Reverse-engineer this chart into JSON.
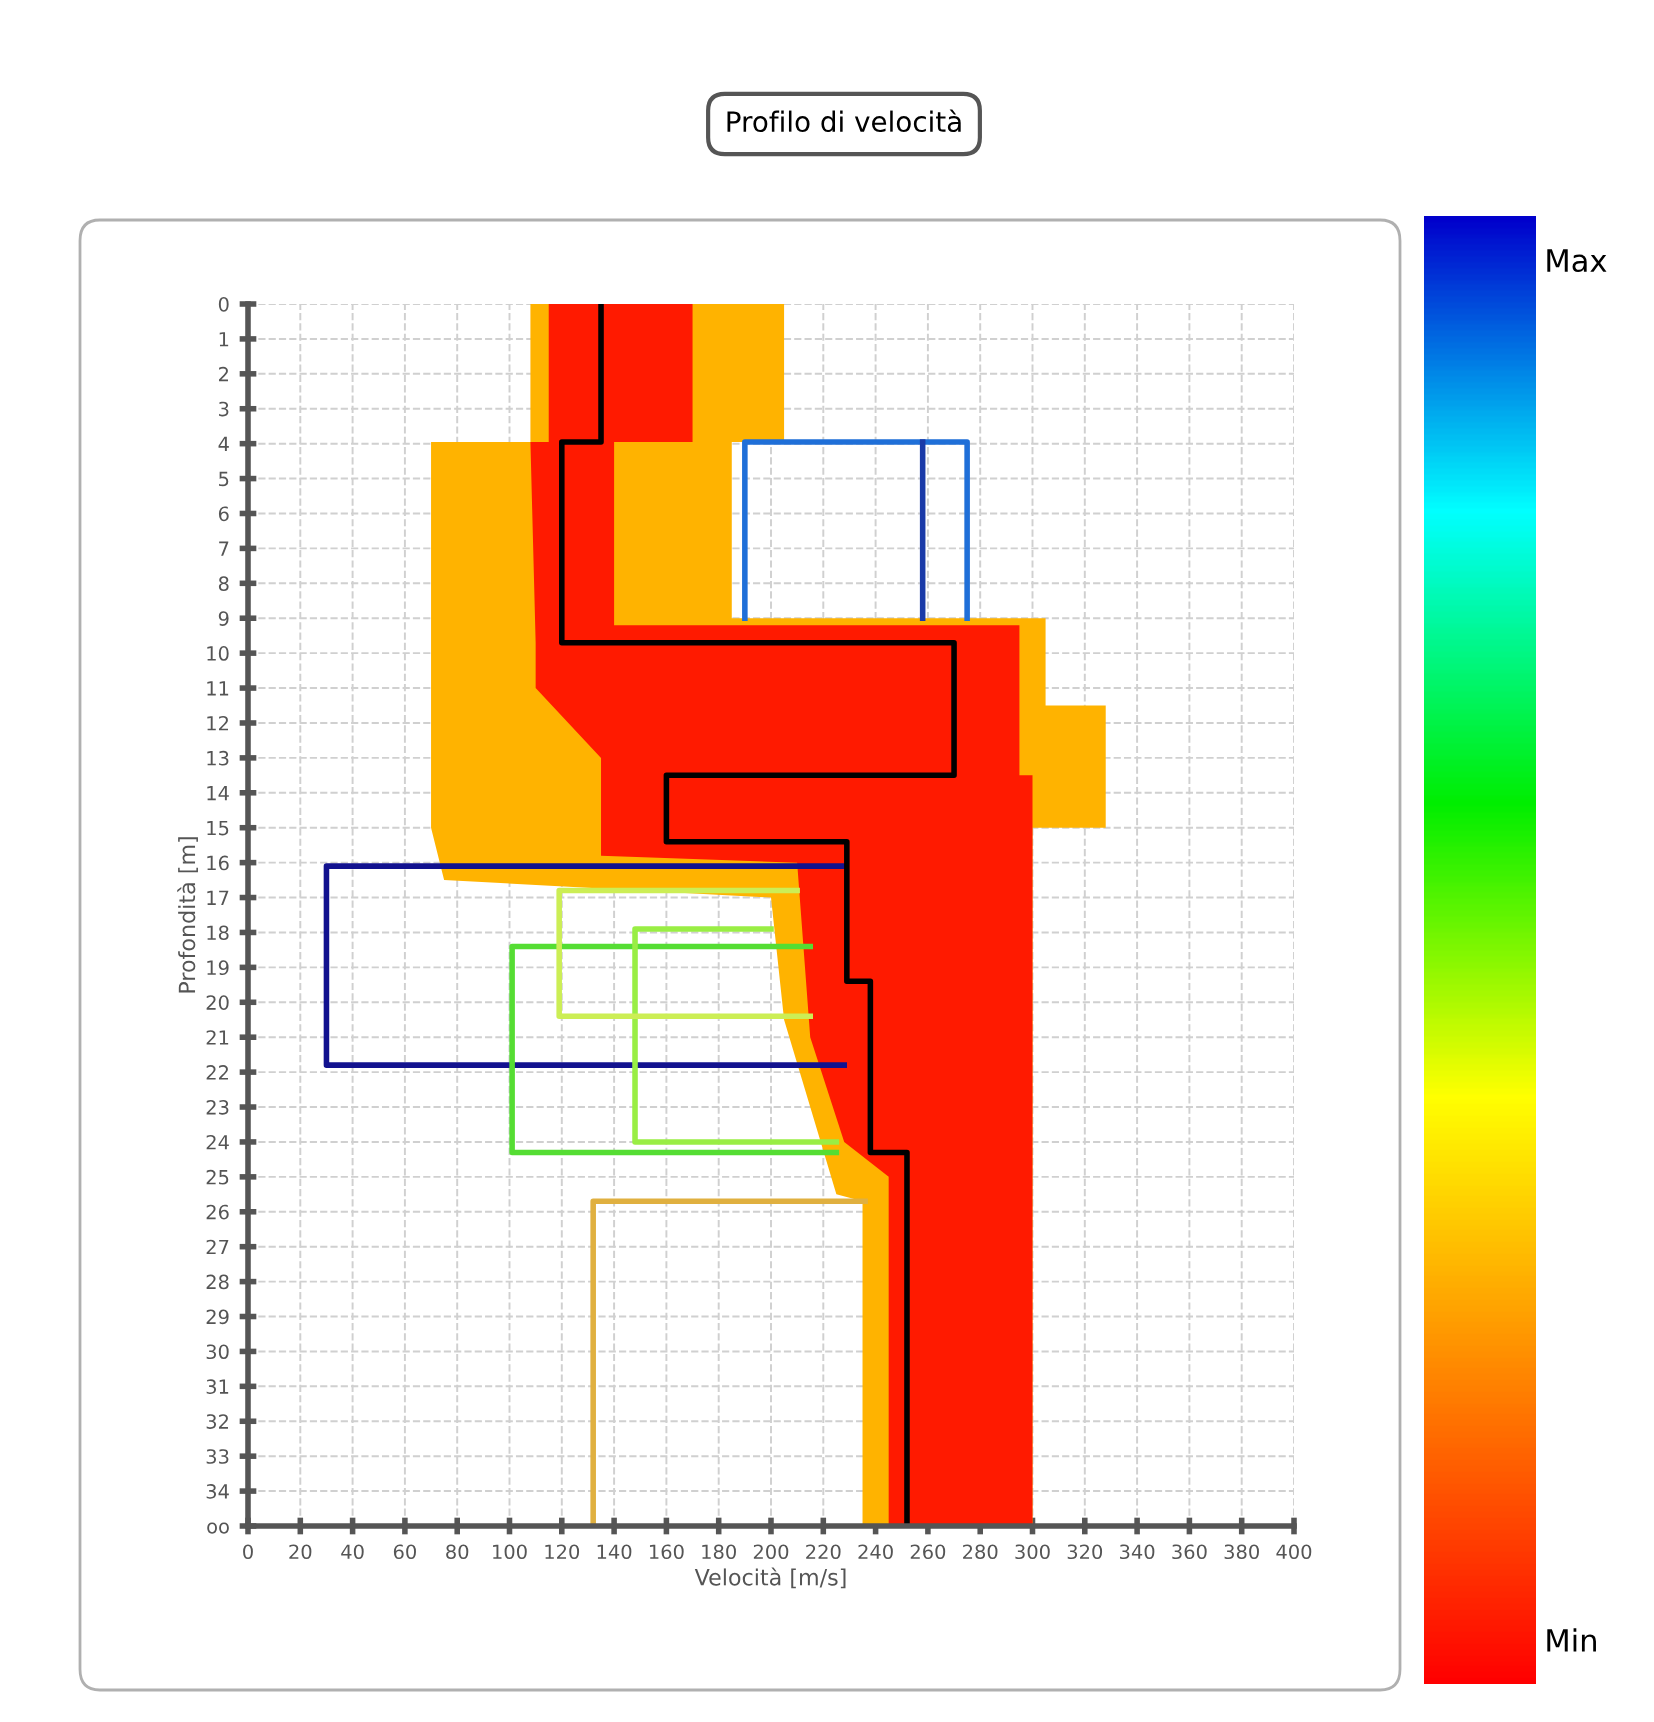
{
  "chart_data": {
    "type": "line",
    "title": "Profilo di velocità",
    "xlabel": "Velocità [m/s]",
    "ylabel": "Profondità [m]",
    "xlim": [
      0,
      400
    ],
    "xticks": [
      0,
      20,
      40,
      60,
      80,
      100,
      120,
      140,
      160,
      180,
      200,
      220,
      240,
      260,
      280,
      300,
      320,
      340,
      360,
      380,
      400
    ],
    "ylim": [
      35,
      0
    ],
    "yticks": [
      0,
      1,
      2,
      3,
      4,
      5,
      6,
      7,
      8,
      9,
      10,
      11,
      12,
      13,
      14,
      15,
      16,
      17,
      18,
      19,
      20,
      21,
      22,
      23,
      24,
      25,
      26,
      27,
      28,
      29,
      30,
      31,
      32,
      33,
      34,
      {
        "value": 35,
        "label": "oo"
      }
    ],
    "grid": true,
    "line_style": "solid",
    "marker": "none",
    "clim": [
      0,
      1
    ],
    "cticks": [
      {
        "value": 0.97,
        "label": "Max"
      },
      {
        "value": 0.03,
        "label": "Min"
      }
    ],
    "series": [
      {
        "type": "area",
        "color": "#ffb300",
        "x": [
          108,
          205,
          205,
          185,
          185,
          305,
          305,
          328,
          328,
          300,
          300,
          235,
          235,
          225,
          205,
          200,
          75,
          70,
          70,
          108
        ],
        "values": [
          0,
          0,
          3.95,
          3.95,
          9,
          9,
          11.5,
          11.5,
          15,
          15,
          35,
          35,
          25.7,
          25.5,
          20.5,
          17,
          16.5,
          15,
          3.95,
          3.95
        ]
      },
      {
        "type": "area",
        "color": "#ff1a00",
        "x": [
          115,
          170,
          170,
          140,
          140,
          295,
          295,
          300,
          300,
          245,
          245,
          228,
          215,
          210,
          135,
          135,
          110,
          110,
          108,
          115
        ],
        "values": [
          0,
          0,
          3.95,
          3.95,
          9.2,
          9.2,
          13.5,
          13.5,
          35,
          35,
          25,
          24,
          21,
          16,
          15.8,
          13,
          11,
          9.7,
          3.95,
          3.95
        ]
      },
      {
        "color": "#1f6fd8",
        "x": [
          190,
          190,
          275,
          275
        ],
        "values": [
          9,
          3.95,
          3.95,
          9
        ]
      },
      {
        "color": "#1a3aa8",
        "x": [
          258,
          258
        ],
        "values": [
          3.95,
          9
        ]
      },
      {
        "color": "#12128f",
        "x": [
          228,
          30,
          30,
          228
        ],
        "values": [
          16.1,
          16.1,
          21.8,
          21.8
        ]
      },
      {
        "color": "#55dd33",
        "x": [
          215,
          101,
          101,
          225
        ],
        "values": [
          18.4,
          18.4,
          24.3,
          24.3
        ]
      },
      {
        "color": "#99ee44",
        "x": [
          200,
          148,
          148,
          225
        ],
        "values": [
          17.9,
          17.9,
          24.0,
          24.0
        ]
      },
      {
        "color": "#ccee55",
        "x": [
          210,
          119,
          119,
          215
        ],
        "values": [
          16.8,
          16.8,
          20.4,
          20.4
        ]
      },
      {
        "color": "#e0b040",
        "x": [
          236,
          132,
          132
        ],
        "values": [
          25.7,
          25.7,
          35
        ]
      },
      {
        "color": "#000000",
        "x": [
          135,
          135,
          120,
          120,
          270,
          270,
          160,
          160,
          229,
          229,
          238,
          238,
          252,
          252
        ],
        "values": [
          0,
          3.95,
          3.95,
          9.7,
          9.7,
          13.5,
          13.5,
          15.4,
          15.4,
          19.4,
          19.4,
          24.3,
          24.3,
          35
        ]
      }
    ]
  }
}
